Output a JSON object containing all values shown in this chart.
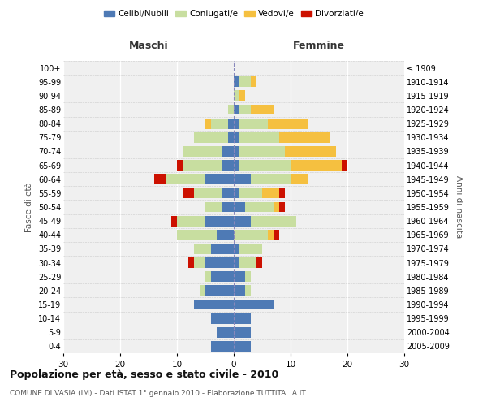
{
  "age_groups": [
    "0-4",
    "5-9",
    "10-14",
    "15-19",
    "20-24",
    "25-29",
    "30-34",
    "35-39",
    "40-44",
    "45-49",
    "50-54",
    "55-59",
    "60-64",
    "65-69",
    "70-74",
    "75-79",
    "80-84",
    "85-89",
    "90-94",
    "95-99",
    "100+"
  ],
  "birth_years": [
    "2005-2009",
    "2000-2004",
    "1995-1999",
    "1990-1994",
    "1985-1989",
    "1980-1984",
    "1975-1979",
    "1970-1974",
    "1965-1969",
    "1960-1964",
    "1955-1959",
    "1950-1954",
    "1945-1949",
    "1940-1944",
    "1935-1939",
    "1930-1934",
    "1925-1929",
    "1920-1924",
    "1915-1919",
    "1910-1914",
    "≤ 1909"
  ],
  "colors": {
    "celibi": "#4e7ab5",
    "coniugati": "#c8dea0",
    "vedovi": "#f5c040",
    "divorziati": "#cc1100"
  },
  "males": {
    "celibi": [
      4,
      3,
      4,
      7,
      5,
      4,
      5,
      4,
      3,
      5,
      2,
      2,
      5,
      2,
      2,
      1,
      1,
      0,
      0,
      0,
      0
    ],
    "coniugati": [
      0,
      0,
      0,
      0,
      1,
      1,
      2,
      3,
      7,
      5,
      3,
      5,
      7,
      7,
      7,
      6,
      3,
      1,
      0,
      0,
      0
    ],
    "vedovi": [
      0,
      0,
      0,
      0,
      0,
      0,
      0,
      0,
      0,
      0,
      0,
      0,
      0,
      0,
      0,
      0,
      1,
      0,
      0,
      0,
      0
    ],
    "divorziati": [
      0,
      0,
      0,
      0,
      0,
      0,
      1,
      0,
      0,
      1,
      0,
      2,
      2,
      1,
      0,
      0,
      0,
      0,
      0,
      0,
      0
    ]
  },
  "females": {
    "nubili": [
      3,
      3,
      3,
      7,
      2,
      2,
      1,
      1,
      0,
      3,
      2,
      1,
      3,
      1,
      1,
      1,
      1,
      1,
      0,
      1,
      0
    ],
    "coniugate": [
      0,
      0,
      0,
      0,
      1,
      1,
      3,
      4,
      6,
      8,
      5,
      4,
      7,
      9,
      8,
      7,
      5,
      2,
      1,
      2,
      0
    ],
    "vedove": [
      0,
      0,
      0,
      0,
      0,
      0,
      0,
      0,
      1,
      0,
      1,
      3,
      3,
      9,
      9,
      9,
      7,
      4,
      1,
      1,
      0
    ],
    "divorziate": [
      0,
      0,
      0,
      0,
      0,
      0,
      1,
      0,
      1,
      0,
      1,
      1,
      0,
      1,
      0,
      0,
      0,
      0,
      0,
      0,
      0
    ]
  },
  "title": "Popolazione per età, sesso e stato civile - 2010",
  "subtitle": "COMUNE DI VASIA (IM) - Dati ISTAT 1° gennaio 2010 - Elaborazione TUTTITALIA.IT",
  "xlabel_left": "Maschi",
  "xlabel_right": "Femmine",
  "ylabel_left": "Fasce di età",
  "ylabel_right": "Anni di nascita",
  "xlim": 30,
  "legend_labels": [
    "Celibi/Nubili",
    "Coniugati/e",
    "Vedovi/e",
    "Divorziati/e"
  ],
  "background_color": "#f0f0f0",
  "bar_height": 0.75
}
